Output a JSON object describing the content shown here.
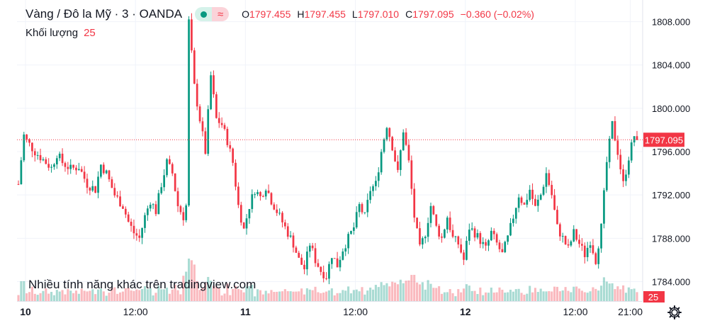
{
  "legend": {
    "symbol": "Vàng / Đô la Mỹ · 3 · OANDA",
    "o_label": "O",
    "o_value": "1797.455",
    "h_label": "H",
    "h_value": "1797.455",
    "l_label": "L",
    "l_value": "1797.010",
    "c_label": "C",
    "c_value": "1797.095",
    "change": "−0.360 (−0.02%)",
    "eye_icon": "eye-dot-icon",
    "wave_icon": "approx-wave-icon"
  },
  "volume_legend": {
    "label": "Khối lượng",
    "value": "25"
  },
  "promo_text": "Nhiều tính năng khác trên tradingview.com",
  "settings_icon": "gear-icon",
  "colors": {
    "up": "#089981",
    "down": "#f23645",
    "grid": "#f0f3fa",
    "axis_text": "#131722"
  },
  "chart_data": {
    "type": "candlestick",
    "timeframe_minutes": 3,
    "x_tick_labels": [
      "10",
      "12:00",
      "11",
      "12:00",
      "12",
      "12:00",
      "21:00"
    ],
    "y_tick_labels": [
      "1808.000",
      "1804.000",
      "1800.000",
      "1796.000",
      "1792.000",
      "1788.000",
      "1784.000"
    ],
    "ylim": [
      1782.2,
      1810.0
    ],
    "grid": true,
    "last_price": 1797.095,
    "last_price_label": "1797.095",
    "volume_last": 25,
    "volume_last_label": "25",
    "close_path": [
      [
        0,
        1793.0
      ],
      [
        2,
        1797.5
      ],
      [
        3,
        1797.0
      ],
      [
        6,
        1796.0
      ],
      [
        8,
        1795.5
      ],
      [
        10,
        1795.0
      ],
      [
        12,
        1794.5
      ],
      [
        14,
        1795.8
      ],
      [
        16,
        1795.0
      ],
      [
        19,
        1794.4
      ],
      [
        22,
        1794.6
      ],
      [
        25,
        1793.0
      ],
      [
        28,
        1792.5
      ],
      [
        30,
        1794.8
      ],
      [
        32,
        1794.0
      ],
      [
        35,
        1792.0
      ],
      [
        38,
        1791.0
      ],
      [
        40,
        1789.5
      ],
      [
        42,
        1788.5
      ],
      [
        44,
        1788.0
      ],
      [
        46,
        1790.0
      ],
      [
        48,
        1791.5
      ],
      [
        50,
        1790.5
      ],
      [
        52,
        1793.0
      ],
      [
        54,
        1795.0
      ],
      [
        56,
        1794.0
      ],
      [
        58,
        1791.0
      ],
      [
        60,
        1790.0
      ],
      [
        61,
        1791.0
      ],
      [
        62,
        1808.0
      ],
      [
        64,
        1802.0
      ],
      [
        66,
        1799.0
      ],
      [
        68,
        1796.0
      ],
      [
        70,
        1803.0
      ],
      [
        72,
        1799.0
      ],
      [
        74,
        1798.5
      ],
      [
        76,
        1797.0
      ],
      [
        78,
        1795.0
      ],
      [
        80,
        1791.0
      ],
      [
        82,
        1788.8
      ],
      [
        84,
        1791.0
      ],
      [
        86,
        1792.5
      ],
      [
        88,
        1791.8
      ],
      [
        90,
        1792.8
      ],
      [
        92,
        1791.5
      ],
      [
        94,
        1790.5
      ],
      [
        96,
        1789.5
      ],
      [
        98,
        1788.5
      ],
      [
        100,
        1787.5
      ],
      [
        102,
        1786.0
      ],
      [
        104,
        1785.2
      ],
      [
        106,
        1787.5
      ],
      [
        108,
        1786.0
      ],
      [
        110,
        1785.0
      ],
      [
        112,
        1784.5
      ],
      [
        114,
        1786.5
      ],
      [
        116,
        1785.5
      ],
      [
        118,
        1787.0
      ],
      [
        120,
        1788.0
      ],
      [
        122,
        1789.0
      ],
      [
        124,
        1791.0
      ],
      [
        126,
        1790.0
      ],
      [
        128,
        1792.5
      ],
      [
        130,
        1793.0
      ],
      [
        132,
        1796.0
      ],
      [
        134,
        1798.5
      ],
      [
        136,
        1796.5
      ],
      [
        138,
        1794.0
      ],
      [
        140,
        1798.0
      ],
      [
        142,
        1795.0
      ],
      [
        144,
        1790.0
      ],
      [
        146,
        1787.0
      ],
      [
        148,
        1788.5
      ],
      [
        150,
        1791.0
      ],
      [
        152,
        1789.0
      ],
      [
        154,
        1788.0
      ],
      [
        156,
        1790.0
      ],
      [
        158,
        1788.0
      ],
      [
        160,
        1787.5
      ],
      [
        162,
        1786.0
      ],
      [
        164,
        1789.0
      ],
      [
        166,
        1788.5
      ],
      [
        168,
        1787.8
      ],
      [
        170,
        1787.0
      ],
      [
        172,
        1788.5
      ],
      [
        174,
        1787.5
      ],
      [
        176,
        1786.5
      ],
      [
        178,
        1788.0
      ],
      [
        180,
        1790.0
      ],
      [
        182,
        1792.0
      ],
      [
        184,
        1791.0
      ],
      [
        186,
        1792.5
      ],
      [
        188,
        1790.8
      ],
      [
        190,
        1792.0
      ],
      [
        192,
        1794.0
      ],
      [
        194,
        1792.0
      ],
      [
        196,
        1789.0
      ],
      [
        198,
        1788.0
      ],
      [
        200,
        1787.0
      ],
      [
        202,
        1788.5
      ],
      [
        204,
        1787.5
      ],
      [
        206,
        1786.5
      ],
      [
        208,
        1787.8
      ],
      [
        210,
        1786.0
      ],
      [
        212,
        1789.0
      ],
      [
        214,
        1795.0
      ],
      [
        216,
        1798.5
      ],
      [
        218,
        1796.0
      ],
      [
        220,
        1793.0
      ],
      [
        222,
        1795.5
      ],
      [
        224,
        1797.5
      ],
      [
        225,
        1797.1
      ]
    ],
    "last_index": 225
  }
}
